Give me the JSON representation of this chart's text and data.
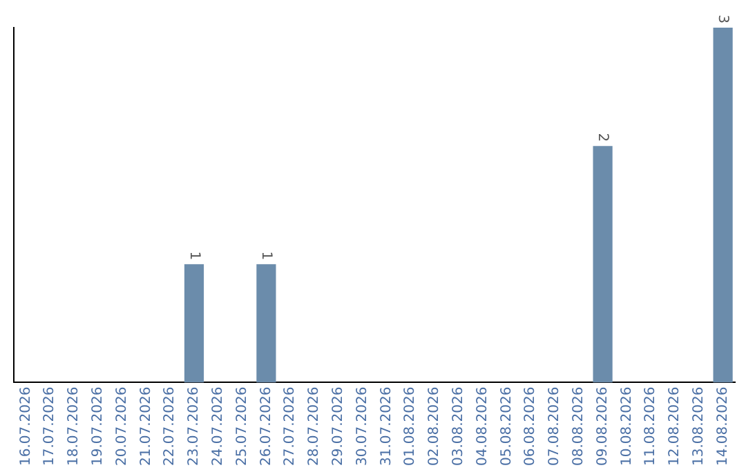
{
  "chart_data": {
    "type": "bar",
    "categories": [
      "16.07.2026",
      "17.07.2026",
      "18.07.2026",
      "19.07.2026",
      "20.07.2026",
      "21.07.2026",
      "22.07.2026",
      "23.07.2026",
      "24.07.2026",
      "25.07.2026",
      "26.07.2026",
      "27.07.2026",
      "28.07.2026",
      "29.07.2026",
      "30.07.2026",
      "31.07.2026",
      "01.08.2026",
      "02.08.2026",
      "03.08.2026",
      "04.08.2026",
      "05.08.2026",
      "06.08.2026",
      "07.08.2026",
      "08.08.2026",
      "09.08.2026",
      "10.08.2026",
      "11.08.2026",
      "12.08.2026",
      "13.08.2026",
      "14.08.2026"
    ],
    "values": [
      0,
      0,
      0,
      0,
      0,
      0,
      0,
      1,
      0,
      0,
      1,
      0,
      0,
      0,
      0,
      0,
      0,
      0,
      0,
      0,
      0,
      0,
      0,
      0,
      2,
      0,
      0,
      0,
      0,
      3
    ],
    "value_labels": [
      null,
      null,
      null,
      null,
      null,
      null,
      null,
      "1",
      null,
      null,
      "1",
      null,
      null,
      null,
      null,
      null,
      null,
      null,
      null,
      null,
      null,
      null,
      null,
      null,
      "2",
      null,
      null,
      null,
      null,
      "3"
    ],
    "color": "#6b8cab",
    "grid": false,
    "legend": false,
    "tick_labels": "x"
  }
}
